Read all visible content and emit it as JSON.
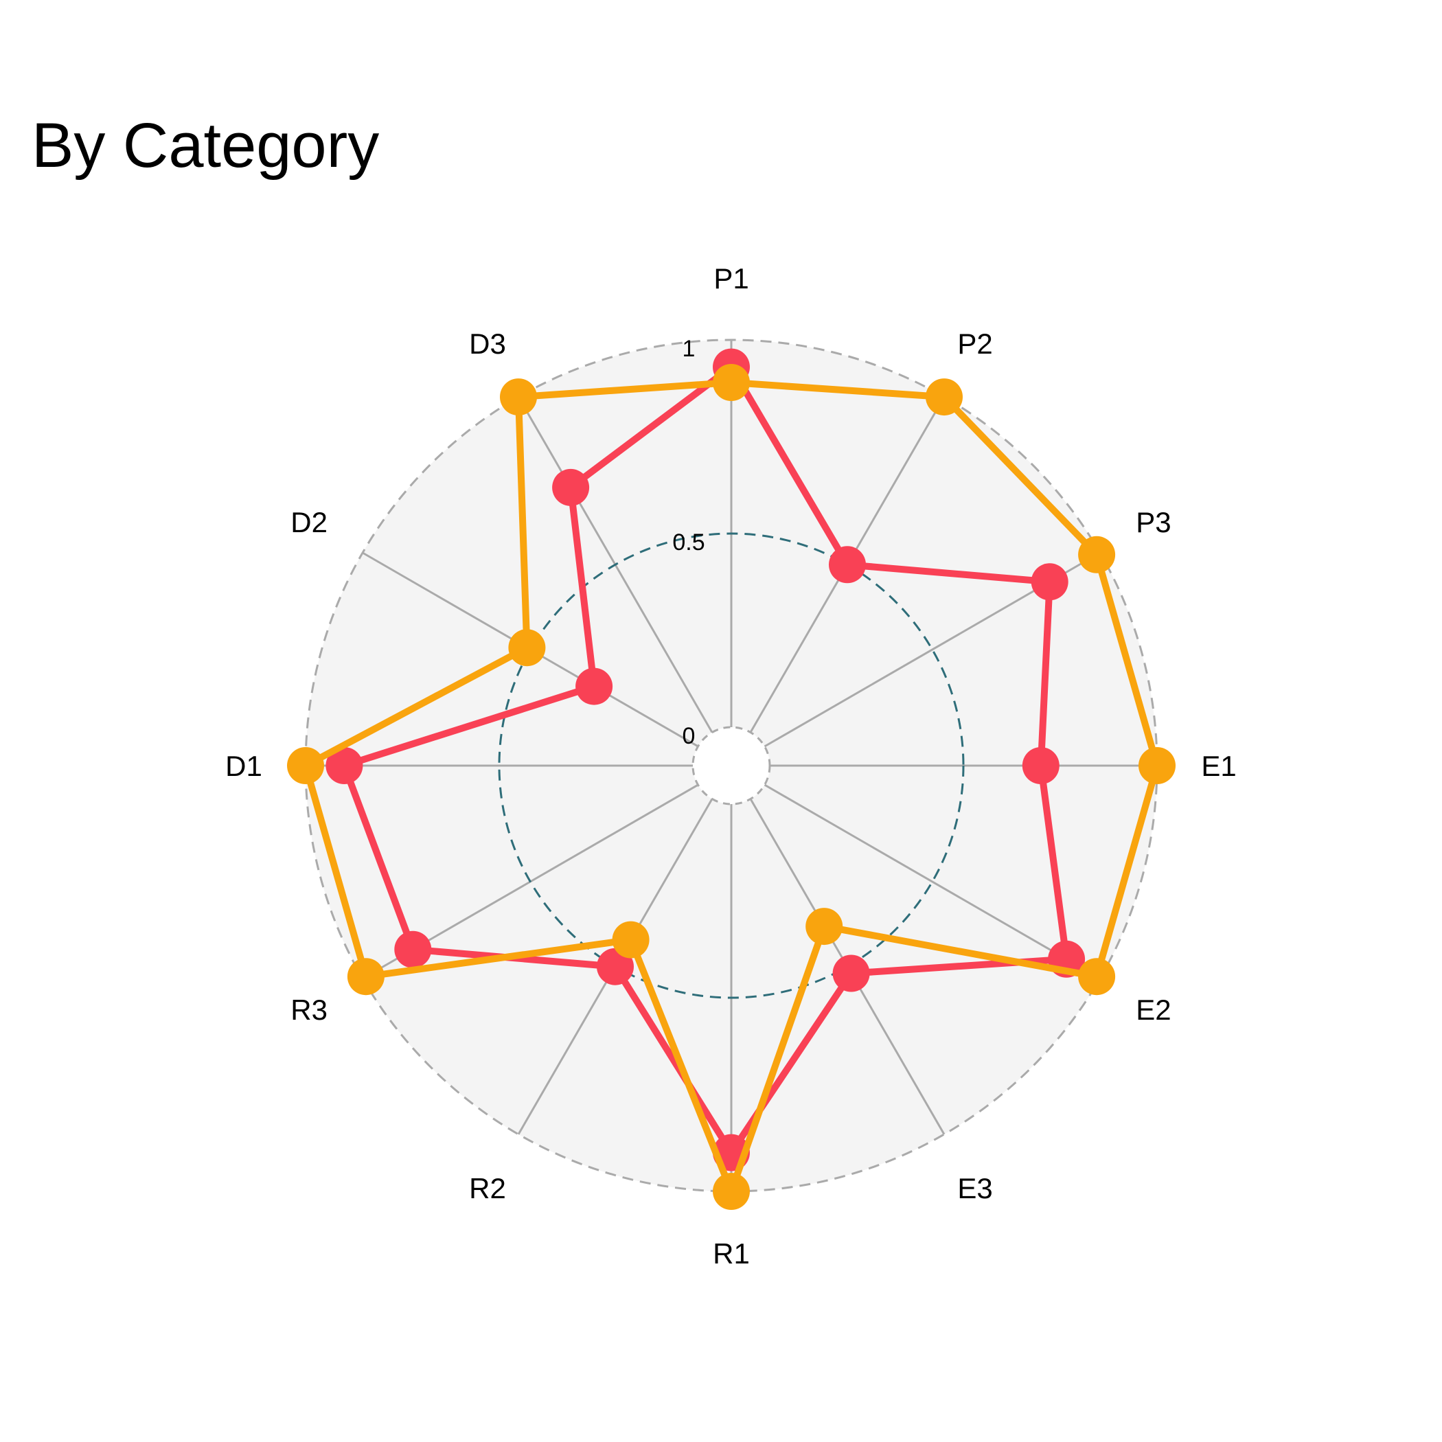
{
  "chart_data": {
    "type": "radar",
    "title": "By Category",
    "categories": [
      "P1",
      "P2",
      "P3",
      "E1",
      "E2",
      "E3",
      "R1",
      "R2",
      "R3",
      "D1",
      "D2",
      "D3"
    ],
    "radial_ticks": [
      "0",
      "0.5",
      "1"
    ],
    "range": [
      0,
      1
    ],
    "reference_ring": 0.5,
    "series": [
      {
        "color": "#f94155",
        "values": [
          0.93,
          0.5,
          0.85,
          0.7,
          0.9,
          0.52,
          0.9,
          0.5,
          0.85,
          0.9,
          0.31,
          0.73
        ]
      },
      {
        "color": "#f9a40e",
        "values": [
          0.89,
          1.0,
          0.99,
          1.0,
          0.99,
          0.38,
          1.0,
          0.42,
          0.99,
          1.0,
          0.51,
          1.0
        ]
      }
    ]
  }
}
